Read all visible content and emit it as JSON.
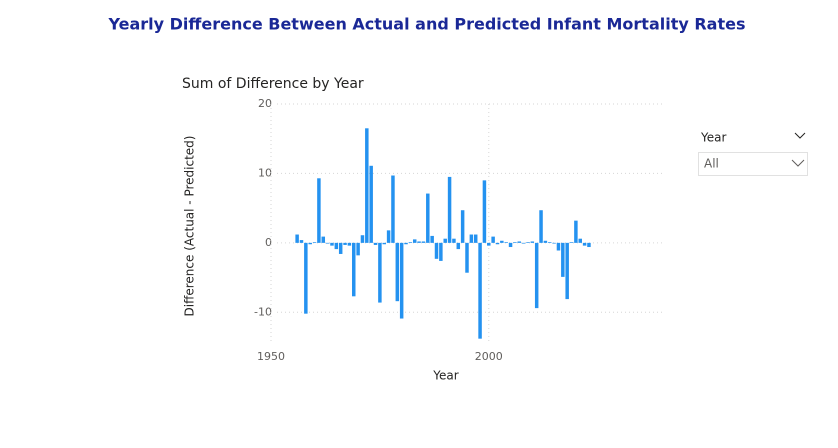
{
  "title": "Yearly Difference Between Actual and Predicted Infant Mortality Rates",
  "chart_data": {
    "type": "bar",
    "title": "Sum of Difference by Year",
    "x_label": "Year",
    "y_label": "Difference (Actual - Predicted)",
    "x": [
      1956,
      1957,
      1958,
      1959,
      1960,
      1961,
      1962,
      1963,
      1964,
      1965,
      1966,
      1967,
      1968,
      1969,
      1970,
      1971,
      1972,
      1973,
      1974,
      1975,
      1976,
      1977,
      1978,
      1979,
      1980,
      1981,
      1982,
      1983,
      1984,
      1985,
      1986,
      1987,
      1988,
      1989,
      1990,
      1991,
      1992,
      1993,
      1994,
      1995,
      1996,
      1997,
      1998,
      1999,
      2000,
      2001,
      2002,
      2003,
      2004,
      2005,
      2006,
      2007,
      2008,
      2009,
      2010,
      2011,
      2012,
      2013,
      2014,
      2015,
      2016,
      2017,
      2018,
      2019,
      2020,
      2021,
      2022,
      2023
    ],
    "values": [
      1.2,
      0.4,
      -10.2,
      -0.2,
      0.1,
      9.3,
      0.9,
      -0.1,
      -0.4,
      -0.9,
      -1.6,
      -0.3,
      -0.4,
      -7.7,
      -1.8,
      1.1,
      16.5,
      11.1,
      -0.3,
      -8.6,
      -0.2,
      1.8,
      9.7,
      -8.4,
      -10.9,
      -0.2,
      0.1,
      0.5,
      0.2,
      0.2,
      7.1,
      1.0,
      -2.3,
      -2.6,
      0.6,
      9.5,
      0.6,
      -0.9,
      4.7,
      -4.3,
      1.2,
      1.2,
      -13.8,
      9.0,
      -0.4,
      0.9,
      -0.2,
      0.3,
      0.1,
      -0.6,
      0.1,
      0.2,
      -0.1,
      0.1,
      0.2,
      -9.4,
      4.7,
      0.3,
      0.1,
      -0.1,
      -1.1,
      -4.9,
      -8.1,
      0.1,
      3.2,
      0.6,
      -0.4,
      -0.6
    ],
    "color": "#2492f0",
    "xlim": [
      1950,
      2040
    ],
    "xticks": [
      1950,
      2000
    ],
    "ylim": [
      -15,
      20
    ],
    "yticks": [
      -10,
      0,
      10,
      20
    ],
    "grid": true
  },
  "slicer": {
    "title": "Year",
    "selection": "All"
  }
}
